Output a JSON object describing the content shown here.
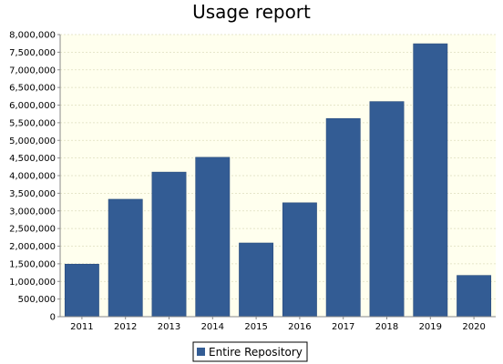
{
  "chart_data": {
    "type": "bar",
    "title": "Usage report",
    "xlabel": "",
    "ylabel": "",
    "categories": [
      "2011",
      "2012",
      "2013",
      "2014",
      "2015",
      "2016",
      "2017",
      "2018",
      "2019",
      "2020"
    ],
    "series": [
      {
        "name": "Entire Repository",
        "values": [
          1490000,
          3330000,
          4100000,
          4520000,
          2090000,
          3230000,
          5620000,
          6100000,
          7740000,
          1170000
        ]
      }
    ],
    "ylim": [
      0,
      8000000
    ],
    "ytick_labels": [
      "0",
      "500,000",
      "1,000,000",
      "1,500,000",
      "2,000,000",
      "2,500,000",
      "3,000,000",
      "3,500,000",
      "4,000,000",
      "4,500,000",
      "5,000,000",
      "5,500,000",
      "6,000,000",
      "6,500,000",
      "7,000,000",
      "7,500,000",
      "8,000,000"
    ],
    "grid": true,
    "legend_position": "bottom-center",
    "colors": {
      "bar": "#335c94",
      "plot_background": "#ffffee",
      "grid": "#dedebe"
    }
  }
}
